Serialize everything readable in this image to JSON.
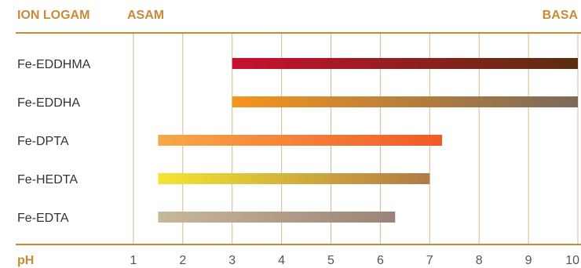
{
  "header": {
    "left_label": "ION LOGAM",
    "acid_label": "ASAM",
    "base_label": "BASA"
  },
  "chart_data": {
    "type": "bar",
    "orientation": "horizontal-range",
    "xlabel": "pH",
    "xlim": [
      0,
      10
    ],
    "xticks": [
      1,
      2,
      3,
      4,
      5,
      6,
      7,
      8,
      9,
      10
    ],
    "grid": true,
    "categories": [
      "Fe-EDDHMA",
      "Fe-EDDHA",
      "Fe-DPTA",
      "Fe-HEDTA",
      "Fe-EDTA"
    ],
    "series": [
      {
        "category": "Fe-EDDHMA",
        "range": [
          3,
          10
        ],
        "color_start": "#c8102e",
        "color_end": "#5a2e10"
      },
      {
        "category": "Fe-EDDHA",
        "range": [
          3,
          10
        ],
        "color_start": "#f7941d",
        "color_end": "#7a6a5a"
      },
      {
        "category": "Fe-DPTA",
        "range": [
          1.5,
          7.25
        ],
        "color_start": "#f7a84a",
        "color_end": "#f05a28"
      },
      {
        "category": "Fe-HEDTA",
        "range": [
          1.5,
          7
        ],
        "color_start": "#f4e531",
        "color_end": "#b07a45"
      },
      {
        "category": "Fe-EDTA",
        "range": [
          1.5,
          6.3
        ],
        "color_start": "#c8b89a",
        "color_end": "#9a8478"
      }
    ],
    "colors": {
      "accent": "#c98a35",
      "grid": "#d9b78c",
      "axis": "#c98a35"
    }
  }
}
